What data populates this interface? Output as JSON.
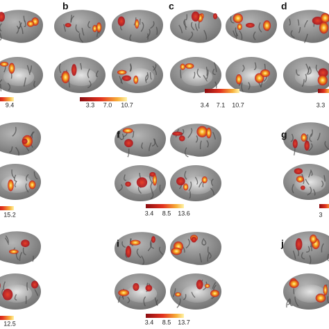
{
  "panels": [
    {
      "colorbar_labels": [
        "9.4"
      ]
    },
    {
      "letter": "b",
      "colorbar_labels": [
        "3.3",
        "7.0",
        "10.7"
      ]
    },
    {
      "letter": "c",
      "colorbar_labels": [
        "3.4",
        "7.1",
        "10.7"
      ]
    },
    {
      "letter": "d",
      "colorbar_labels": [
        "3.3"
      ]
    },
    {
      "colorbar_labels": [
        "15.2"
      ]
    },
    {
      "letter": "f",
      "colorbar_labels": [
        "3.4",
        "8.5",
        "13.6"
      ]
    },
    {
      "letter": "g",
      "colorbar_labels": [
        "3"
      ]
    },
    {
      "colorbar_labels": [
        "12.5"
      ]
    },
    {
      "letter": "i",
      "colorbar_labels": [
        "3.4",
        "8.5",
        "13.7"
      ]
    },
    {
      "letter": "j"
    }
  ]
}
